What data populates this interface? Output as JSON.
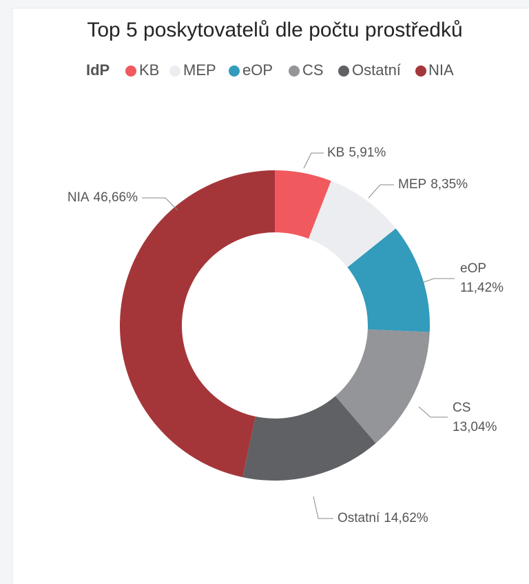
{
  "chart_data": {
    "type": "donut",
    "title": "Top 5 poskytovatelů dle počtu prostředků",
    "legend_title": "IdP",
    "categories": [
      "KB",
      "MEP",
      "eOP",
      "CS",
      "Ostatní",
      "NIA"
    ],
    "values": [
      5.91,
      8.35,
      11.42,
      13.04,
      14.62,
      46.66
    ],
    "value_labels": [
      "5,91%",
      "8,35%",
      "11,42%",
      "13,04%",
      "14,62%",
      "46,66%"
    ],
    "colors": [
      "#f05a5e",
      "#ecedf0",
      "#339bbb",
      "#939598",
      "#606165",
      "#a4363a"
    ]
  }
}
